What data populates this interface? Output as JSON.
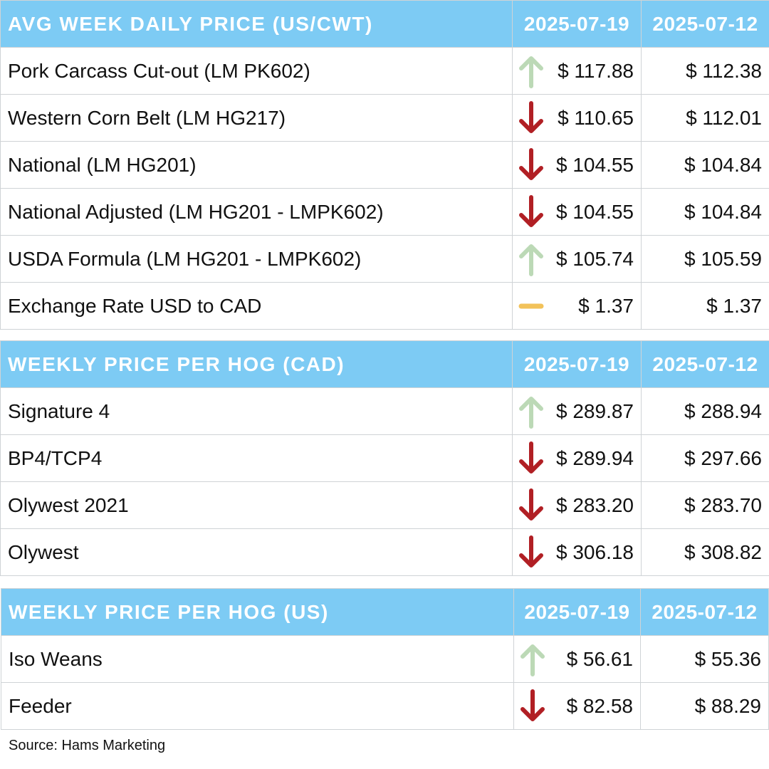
{
  "sections": [
    {
      "title": "AVG WEEK DAILY PRICE (US/CWT)",
      "date_current": "2025-07-19",
      "date_previous": "2025-07-12",
      "rows": [
        {
          "label": "Pork Carcass Cut-out (LM PK602)",
          "trend": "up",
          "current": "$ 117.88",
          "previous": "$ 112.38"
        },
        {
          "label": "Western Corn Belt (LM HG217)",
          "trend": "down",
          "current": "$ 110.65",
          "previous": "$ 112.01"
        },
        {
          "label": "National (LM HG201)",
          "trend": "down",
          "current": "$ 104.55",
          "previous": "$ 104.84"
        },
        {
          "label": "National Adjusted (LM HG201 - LMPK602)",
          "trend": "down",
          "current": "$ 104.55",
          "previous": "$ 104.84"
        },
        {
          "label": "USDA Formula (LM HG201 - LMPK602)",
          "trend": "up",
          "current": "$ 105.74",
          "previous": "$ 105.59"
        },
        {
          "label": "Exchange Rate USD to CAD",
          "trend": "flat",
          "current": "$ 1.37",
          "previous": "$ 1.37"
        }
      ]
    },
    {
      "title": "WEEKLY PRICE PER HOG (CAD)",
      "date_current": "2025-07-19",
      "date_previous": "2025-07-12",
      "rows": [
        {
          "label": "Signature 4",
          "trend": "up",
          "current": "$ 289.87",
          "previous": "$ 288.94"
        },
        {
          "label": "BP4/TCP4",
          "trend": "down",
          "current": "$ 289.94",
          "previous": "$ 297.66"
        },
        {
          "label": "Olywest 2021",
          "trend": "down",
          "current": "$ 283.20",
          "previous": "$ 283.70"
        },
        {
          "label": "Olywest",
          "trend": "down",
          "current": "$ 306.18",
          "previous": "$ 308.82"
        }
      ]
    },
    {
      "title": "WEEKLY PRICE PER HOG (US)",
      "date_current": "2025-07-19",
      "date_previous": "2025-07-12",
      "rows": [
        {
          "label": "Iso Weans",
          "trend": "up",
          "current": "$ 56.61",
          "previous": "$ 55.36"
        },
        {
          "label": "Feeder",
          "trend": "down",
          "current": "$ 82.58",
          "previous": "$ 88.29"
        }
      ]
    }
  ],
  "colors": {
    "header": "#7dcbf4",
    "up": "#bcd9b6",
    "down": "#b11f24",
    "flat": "#f2c25a"
  },
  "icons": {
    "up": "arrow-up-icon",
    "down": "arrow-down-icon",
    "flat": "dash-icon"
  },
  "source": "Source: Hams Marketing"
}
